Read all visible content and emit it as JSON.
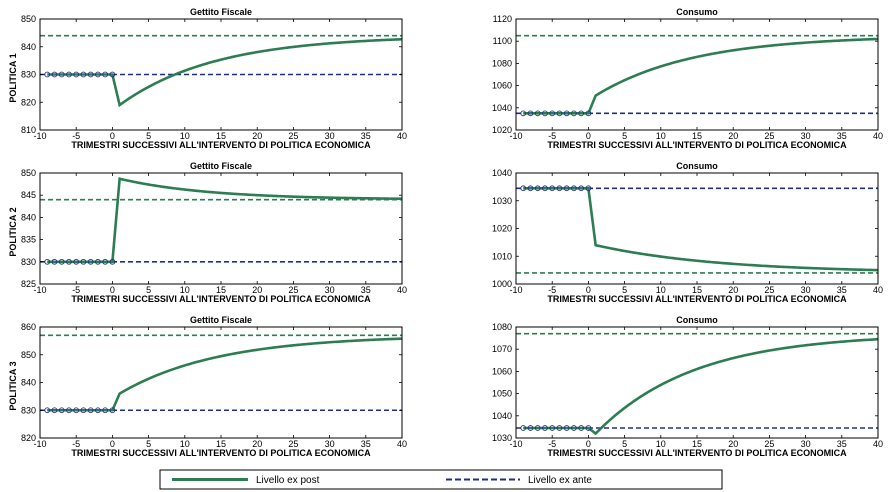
{
  "row_labels": [
    "POLITICA 1",
    "POLITICA 2",
    "POLITICA 3"
  ],
  "legend": {
    "expost": "Livello ex post",
    "exante": "Livello ex ante"
  },
  "colors": {
    "expost": "#2e7d52",
    "exante": "#1f2e8c",
    "target": "#2e7d52"
  },
  "chart_data": [
    {
      "type": "line",
      "title": "Gettito Fiscale",
      "xlabel": "TRIMESTRI SUCCESSIVI ALL'INTERVENTO DI POLITICA ECONOMICA",
      "ylabel": "POLITICA 1",
      "xlim": [
        -10,
        40
      ],
      "ylim": [
        810,
        850
      ],
      "xticks": [
        -10,
        -5,
        0,
        5,
        10,
        15,
        20,
        25,
        30,
        35,
        40
      ],
      "yticks": [
        810,
        820,
        830,
        840,
        850
      ],
      "pre_level": 830,
      "jump": [
        1,
        819
      ],
      "target": 844,
      "end": [
        40,
        842.7
      ],
      "series": [
        {
          "name": "Livello ex post",
          "x": [
            -9,
            -8,
            -7,
            -6,
            -5,
            -4,
            -3,
            -2,
            -1,
            0,
            1,
            5,
            10,
            15,
            20,
            25,
            30,
            35,
            40
          ],
          "values": [
            830,
            830,
            830,
            830,
            830,
            830,
            830,
            830,
            830,
            830,
            819,
            826.2,
            832.4,
            836.1,
            838.6,
            840.2,
            841.3,
            842.1,
            842.7
          ]
        },
        {
          "name": "Livello ex ante",
          "x": [
            -10,
            40
          ],
          "values": [
            830,
            830
          ]
        }
      ],
      "reference_line": 844,
      "grid": false
    },
    {
      "type": "line",
      "title": "Consumo",
      "xlabel": "TRIMESTRI SUCCESSIVI ALL'INTERVENTO DI POLITICA ECONOMICA",
      "ylabel": "",
      "xlim": [
        -10,
        40
      ],
      "ylim": [
        1020,
        1120
      ],
      "xticks": [
        -10,
        -5,
        0,
        5,
        10,
        15,
        20,
        25,
        30,
        35,
        40
      ],
      "yticks": [
        1020,
        1040,
        1060,
        1080,
        1100,
        1120
      ],
      "pre_level": 1035,
      "jump": [
        1,
        1051
      ],
      "target": 1105,
      "end": [
        40,
        1102
      ],
      "series": [
        {
          "name": "Livello ex post",
          "x": [
            -9,
            -8,
            -7,
            -6,
            -5,
            -4,
            -3,
            -2,
            -1,
            0,
            1,
            5,
            10,
            15,
            20,
            25,
            30,
            35,
            40
          ],
          "values": [
            1035,
            1035,
            1035,
            1035,
            1035,
            1035,
            1035,
            1035,
            1035,
            1035,
            1051,
            1065.8,
            1078.5,
            1086.4,
            1092,
            1095.6,
            1098.6,
            1100.5,
            1102
          ]
        },
        {
          "name": "Livello ex ante",
          "x": [
            -10,
            40
          ],
          "values": [
            1035,
            1035
          ]
        }
      ],
      "reference_line": 1105,
      "grid": false
    },
    {
      "type": "line",
      "title": "Gettito Fiscale",
      "xlabel": "TRIMESTRI SUCCESSIVI ALL'INTERVENTO DI POLITICA ECONOMICA",
      "ylabel": "POLITICA 2",
      "xlim": [
        -10,
        40
      ],
      "ylim": [
        825,
        850
      ],
      "xticks": [
        -10,
        -5,
        0,
        5,
        10,
        15,
        20,
        25,
        30,
        35,
        40
      ],
      "yticks": [
        825,
        830,
        835,
        840,
        845,
        850
      ],
      "pre_level": 830,
      "jump": [
        1,
        848.7
      ],
      "target": 844,
      "end": [
        40,
        844.2
      ],
      "series": [
        {
          "name": "Livello ex post",
          "x": [
            -9,
            -8,
            -7,
            -6,
            -5,
            -4,
            -3,
            -2,
            -1,
            0,
            1,
            5,
            10,
            15,
            20,
            25,
            30,
            35,
            40
          ],
          "values": [
            830,
            830,
            830,
            830,
            830,
            830,
            830,
            830,
            830,
            830,
            848.7,
            847.5,
            846.4,
            845.6,
            845.1,
            844.8,
            844.5,
            844.4,
            844.2
          ]
        },
        {
          "name": "Livello ex ante",
          "x": [
            -10,
            40
          ],
          "values": [
            830,
            830
          ]
        }
      ],
      "reference_line": 844,
      "grid": false
    },
    {
      "type": "line",
      "title": "Consumo",
      "xlabel": "TRIMESTRI SUCCESSIVI ALL'INTERVENTO DI POLITICA ECONOMICA",
      "ylabel": "",
      "xlim": [
        -10,
        40
      ],
      "ylim": [
        1000,
        1040
      ],
      "xticks": [
        -10,
        -5,
        0,
        5,
        10,
        15,
        20,
        25,
        30,
        35,
        40
      ],
      "yticks": [
        1000,
        1010,
        1020,
        1030,
        1040
      ],
      "pre_level": 1034.5,
      "jump": [
        1,
        1014
      ],
      "target": 1004,
      "end": [
        40,
        1005
      ],
      "series": [
        {
          "name": "Livello ex post",
          "x": [
            -9,
            -8,
            -7,
            -6,
            -5,
            -4,
            -3,
            -2,
            -1,
            0,
            1,
            5,
            10,
            15,
            20,
            25,
            30,
            35,
            40
          ],
          "values": [
            1034.5,
            1034.5,
            1034.5,
            1034.5,
            1034.5,
            1034.5,
            1034.5,
            1034.5,
            1034.5,
            1034.5,
            1014,
            1011.4,
            1009.2,
            1007.8,
            1006.9,
            1006.2,
            1005.7,
            1005.3,
            1005
          ]
        },
        {
          "name": "Livello ex ante",
          "x": [
            -10,
            40
          ],
          "values": [
            1034.5,
            1034.5
          ]
        }
      ],
      "reference_line": 1004,
      "grid": false
    },
    {
      "type": "line",
      "title": "Gettito Fiscale",
      "xlabel": "TRIMESTRI SUCCESSIVI ALL'INTERVENTO DI POLITICA ECONOMICA",
      "ylabel": "POLITICA 3",
      "xlim": [
        -10,
        40
      ],
      "ylim": [
        820,
        860
      ],
      "xticks": [
        -10,
        -5,
        0,
        5,
        10,
        15,
        20,
        25,
        30,
        35,
        40
      ],
      "yticks": [
        820,
        830,
        840,
        850,
        860
      ],
      "pre_level": 830,
      "jump": [
        1,
        836
      ],
      "target": 857,
      "end": [
        40,
        855.8
      ],
      "series": [
        {
          "name": "Livello ex post",
          "x": [
            -9,
            -8,
            -7,
            -6,
            -5,
            -4,
            -3,
            -2,
            -1,
            0,
            1,
            5,
            10,
            15,
            20,
            25,
            30,
            35,
            40
          ],
          "values": [
            830,
            830,
            830,
            830,
            830,
            830,
            830,
            830,
            830,
            830,
            836,
            840.6,
            845.3,
            848.8,
            851.3,
            853,
            854.2,
            855.1,
            855.8
          ]
        },
        {
          "name": "Livello ex ante",
          "x": [
            -10,
            40
          ],
          "values": [
            830,
            830
          ]
        }
      ],
      "reference_line": 857,
      "grid": false
    },
    {
      "type": "line",
      "title": "Consumo",
      "xlabel": "TRIMESTRI SUCCESSIVI ALL'INTERVENTO DI POLITICA ECONOMICA",
      "ylabel": "",
      "xlim": [
        -10,
        40
      ],
      "ylim": [
        1030,
        1080
      ],
      "xticks": [
        -10,
        -5,
        0,
        5,
        10,
        15,
        20,
        25,
        30,
        35,
        40
      ],
      "yticks": [
        1030,
        1040,
        1050,
        1060,
        1070,
        1080
      ],
      "pre_level": 1034.5,
      "jump": [
        1,
        1032
      ],
      "target": 1077,
      "end": [
        40,
        1074.5
      ],
      "series": [
        {
          "name": "Livello ex post",
          "x": [
            -9,
            -8,
            -7,
            -6,
            -5,
            -4,
            -3,
            -2,
            -1,
            0,
            1,
            5,
            10,
            15,
            20,
            25,
            30,
            35,
            40
          ],
          "values": [
            1034.5,
            1034.5,
            1034.5,
            1034.5,
            1034.5,
            1034.5,
            1034.5,
            1034.5,
            1034.5,
            1034.5,
            1032,
            1044.3,
            1054.8,
            1062.2,
            1066.9,
            1070,
            1072,
            1073.5,
            1074.5
          ]
        },
        {
          "name": "Livello ex ante",
          "x": [
            -10,
            40
          ],
          "values": [
            1034.5,
            1034.5
          ]
        }
      ],
      "reference_line": 1077,
      "grid": false
    }
  ]
}
